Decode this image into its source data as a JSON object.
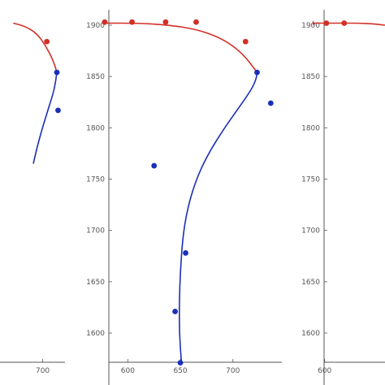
{
  "chart_data": [
    {
      "type": "scatter",
      "panel": "left (cropped)",
      "grid": false,
      "legend": "none",
      "xlim": [
        500,
        770
      ],
      "ylim": [
        1570,
        1910
      ],
      "x_ticks": [
        700
      ],
      "y_ticks": [],
      "colors": {
        "upper": "#d03027",
        "lower": "#1a2fb8"
      },
      "series": [
        {
          "color": "red",
          "kind": "points",
          "x": [
            714
          ],
          "y": [
            1884
          ]
        },
        {
          "color": "blue",
          "kind": "points",
          "x": [
            748,
            752
          ],
          "y": [
            1854,
            1817
          ]
        },
        {
          "color": "red",
          "kind": "curve",
          "x": [
            600,
            640,
            680,
            710,
            735,
            748
          ],
          "y": [
            1902,
            1899,
            1892,
            1880,
            1866,
            1854
          ]
        },
        {
          "color": "blue",
          "kind": "curve",
          "x": [
            748,
            740,
            725,
            710,
            695,
            680,
            668
          ],
          "y": [
            1854,
            1838,
            1824,
            1810,
            1796,
            1780,
            1765
          ]
        }
      ]
    },
    {
      "type": "scatter",
      "panel": "middle",
      "grid": false,
      "legend": "none",
      "xlim": [
        575,
        745
      ],
      "ylim": [
        1570,
        1910
      ],
      "x_ticks": [
        600,
        650,
        700
      ],
      "y_ticks": [
        1600,
        1650,
        1700,
        1750,
        1800,
        1850,
        1900
      ],
      "colors": {
        "upper": "#d03027",
        "lower": "#1a2fb8"
      },
      "series": [
        {
          "color": "red",
          "kind": "points",
          "x": [
            578,
            604,
            636,
            665,
            712
          ],
          "y": [
            1903,
            1903,
            1903,
            1903,
            1884
          ]
        },
        {
          "color": "blue",
          "kind": "points",
          "x": [
            723,
            736,
            625,
            655,
            645,
            650
          ],
          "y": [
            1854,
            1824,
            1763,
            1678,
            1621,
            1571
          ]
        },
        {
          "color": "red",
          "kind": "curve",
          "x": [
            578,
            610,
            640,
            665,
            685,
            700,
            712,
            723
          ],
          "y": [
            1902,
            1902,
            1900,
            1896,
            1889,
            1880,
            1869,
            1854
          ]
        },
        {
          "color": "blue",
          "kind": "curve",
          "x": [
            723,
            722,
            718,
            708,
            692,
            676,
            664,
            656,
            652,
            650,
            649,
            649,
            651
          ],
          "y": [
            1854,
            1847,
            1838,
            1823,
            1800,
            1774,
            1747,
            1718,
            1690,
            1660,
            1630,
            1600,
            1571
          ]
        }
      ]
    },
    {
      "type": "scatter",
      "panel": "right (cropped)",
      "grid": false,
      "legend": "none",
      "xlim": [
        575,
        705
      ],
      "ylim": [
        1570,
        1910
      ],
      "x_ticks": [
        600
      ],
      "y_ticks": [
        1600,
        1650,
        1700,
        1750,
        1800,
        1850,
        1900
      ],
      "colors": {
        "upper": "#d03027",
        "lower": "#1a2fb8"
      },
      "series": [
        {
          "color": "red",
          "kind": "points",
          "x": [
            577,
            603,
            634
          ],
          "y": [
            1902,
            1902,
            1902
          ]
        },
        {
          "color": "red",
          "kind": "curve",
          "x": [
            577,
            600,
            630,
            660,
            690,
            705
          ],
          "y": [
            1902,
            1902,
            1902,
            1902,
            1901,
            1900
          ]
        }
      ]
    }
  ]
}
